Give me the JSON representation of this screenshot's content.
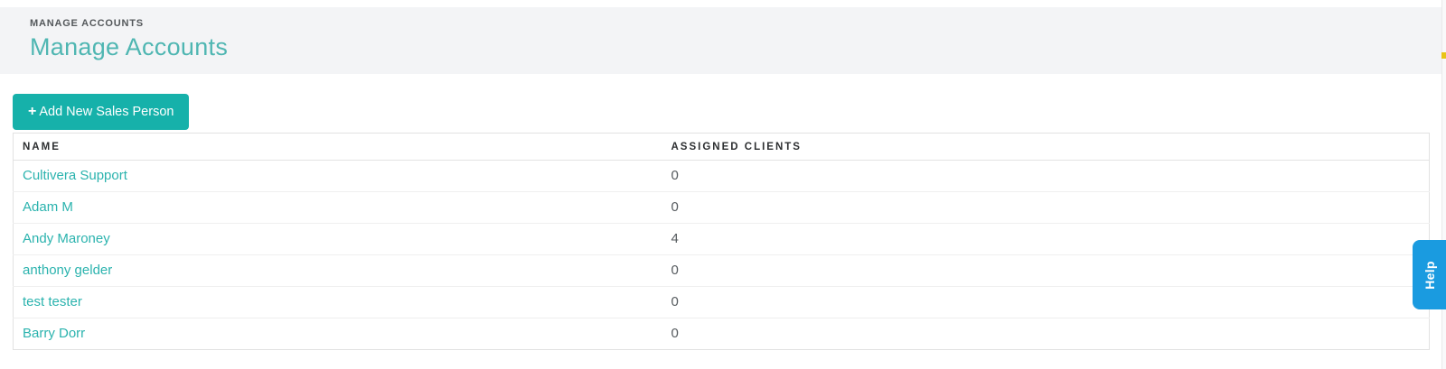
{
  "header": {
    "breadcrumb": "MANAGE ACCOUNTS",
    "title": "Manage Accounts"
  },
  "toolbar": {
    "plus_icon": "+",
    "add_button_label": "Add New Sales Person"
  },
  "table": {
    "columns": [
      "NAME",
      "ASSIGNED CLIENTS"
    ],
    "rows": [
      {
        "name": "Cultivera Support",
        "assigned_clients": "0"
      },
      {
        "name": "Adam M",
        "assigned_clients": "0"
      },
      {
        "name": "Andy Maroney",
        "assigned_clients": "4"
      },
      {
        "name": "anthony gelder",
        "assigned_clients": "0"
      },
      {
        "name": "test tester",
        "assigned_clients": "0"
      },
      {
        "name": "Barry Dorr",
        "assigned_clients": "0"
      }
    ]
  },
  "help_tab": {
    "label": "Help"
  },
  "colors": {
    "accent_teal": "#16b1aa",
    "link_teal": "#2bb3ae",
    "title_teal": "#4fb6b2",
    "header_bg": "#f3f4f6",
    "help_blue": "#1a9be0",
    "edge_marker_yellow": "#e9c417"
  }
}
